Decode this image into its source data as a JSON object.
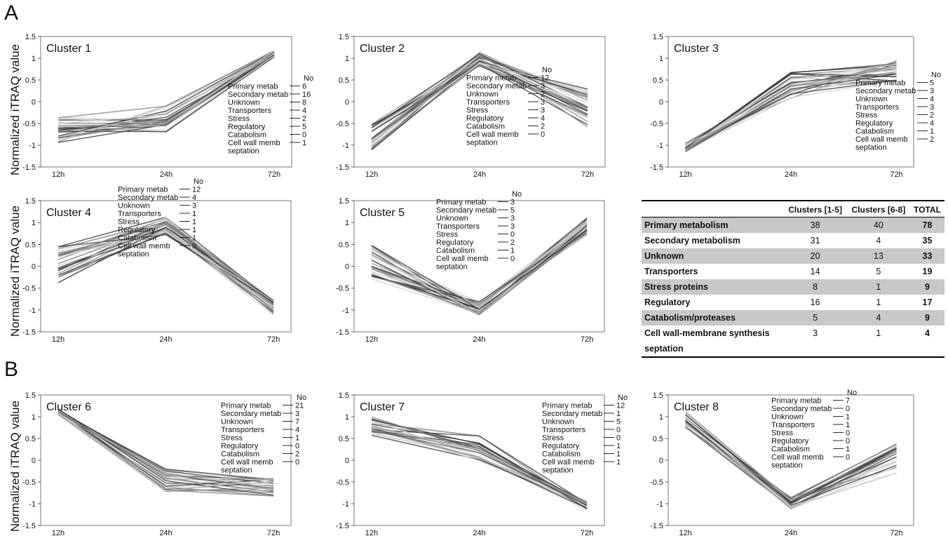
{
  "panels": {
    "a": "A",
    "b": "B"
  },
  "ylabel": "Normalized iTRAQ value",
  "colors": {
    "line_dark": "#3c3c3c",
    "line_mid": "#8a8a8a",
    "line_light": "#cfcfcf",
    "table_shade": "#c8c8c8"
  },
  "chart_data": [
    {
      "type": "line",
      "title": "Cluster 1",
      "categories": [
        "12h",
        "24h",
        "72h"
      ],
      "ylim": [
        -1.5,
        1.5
      ],
      "yticks": [
        "1.5",
        "1",
        "0.5",
        "0",
        "-0.5",
        "-1",
        "-1.5"
      ],
      "series_range": {
        "start": [
          -0.95,
          -0.35
        ],
        "mid": [
          -0.75,
          -0.05
        ],
        "end": [
          1.02,
          1.18
        ]
      },
      "line_count": 30,
      "annotation": {
        "header": "No",
        "rows": [
          {
            "label": "Primary metab",
            "count": "6"
          },
          {
            "label": "Secondary metab",
            "count": "16"
          },
          {
            "label": "Unknown",
            "count": "8"
          },
          {
            "label": "Transporters",
            "count": "4"
          },
          {
            "label": "Stress",
            "count": "2"
          },
          {
            "label": "Regulatory",
            "count": "5"
          },
          {
            "label": "Catabolism",
            "count": "0"
          },
          {
            "label": "Cell wall memb",
            "count": "1"
          }
        ],
        "extra": "septation"
      }
    },
    {
      "type": "line",
      "title": "Cluster 2",
      "categories": [
        "12h",
        "24h",
        "72h"
      ],
      "ylim": [
        -1.5,
        1.5
      ],
      "yticks": [
        "1.5",
        "1",
        "0.5",
        "0",
        "-0.5",
        "-1",
        "-1.5"
      ],
      "series_range": {
        "start": [
          -1.12,
          -0.5
        ],
        "mid": [
          0.82,
          1.15
        ],
        "end": [
          -0.62,
          0.3
        ]
      },
      "line_count": 30,
      "annotation": {
        "header": "No",
        "rows": [
          {
            "label": "Primary metab",
            "count": "12"
          },
          {
            "label": "Secondary metab",
            "count": "3"
          },
          {
            "label": "Unknown",
            "count": "2"
          },
          {
            "label": "Transporters",
            "count": "3"
          },
          {
            "label": "Stress",
            "count": "3"
          },
          {
            "label": "Regulatory",
            "count": "4"
          },
          {
            "label": "Catabolism",
            "count": "2"
          },
          {
            "label": "Cell wall memb",
            "count": "0"
          }
        ],
        "extra": "septation"
      }
    },
    {
      "type": "line",
      "title": "Cluster 3",
      "categories": [
        "12h",
        "24h",
        "72h"
      ],
      "ylim": [
        -1.5,
        1.5
      ],
      "yticks": [
        "1.5",
        "1",
        "0.5",
        "0",
        "-0.5",
        "-1",
        "-1.5"
      ],
      "series_range": {
        "start": [
          -1.15,
          -0.95
        ],
        "mid": [
          0.05,
          0.7
        ],
        "end": [
          0.45,
          1.02
        ]
      },
      "line_count": 28,
      "annotation": {
        "header": "No",
        "rows": [
          {
            "label": "Primary metab",
            "count": "5"
          },
          {
            "label": "Secondary metab",
            "count": "3"
          },
          {
            "label": "Unknown",
            "count": "4"
          },
          {
            "label": "Transporters",
            "count": "3"
          },
          {
            "label": "Stress",
            "count": "2"
          },
          {
            "label": "Regulatory",
            "count": "4"
          },
          {
            "label": "Catabolism",
            "count": "1"
          },
          {
            "label": "Cell wall memb",
            "count": "2"
          }
        ],
        "extra": "septation"
      }
    },
    {
      "type": "line",
      "title": "Cluster 4",
      "categories": [
        "12h",
        "24h",
        "72h"
      ],
      "ylim": [
        -1.5,
        1.5
      ],
      "yticks": [
        "1.5",
        "1",
        "0.5",
        "0",
        "-0.5",
        "-1",
        "-1.5"
      ],
      "series_range": {
        "start": [
          -0.38,
          0.45
        ],
        "mid": [
          0.72,
          1.15
        ],
        "end": [
          -1.12,
          -0.78
        ]
      },
      "line_count": 30,
      "annotation": {
        "header": "No",
        "rows": [
          {
            "label": "Primary metab",
            "count": "12"
          },
          {
            "label": "Secondary metab",
            "count": "4"
          },
          {
            "label": "Unknown",
            "count": "3"
          },
          {
            "label": "Transporters",
            "count": "1"
          },
          {
            "label": "Stress",
            "count": "1"
          },
          {
            "label": "Regulatory",
            "count": "1"
          },
          {
            "label": "Catabolism",
            "count": "1"
          },
          {
            "label": "Cell wall memb",
            "count": "0"
          }
        ],
        "extra": "septation"
      }
    },
    {
      "type": "line",
      "title": "Cluster 5",
      "categories": [
        "12h",
        "24h",
        "72h"
      ],
      "ylim": [
        -1.5,
        1.5
      ],
      "yticks": [
        "1.5",
        "1",
        "0.5",
        "0",
        "-0.5",
        "-1",
        "-1.5"
      ],
      "series_range": {
        "start": [
          -0.32,
          0.48
        ],
        "mid": [
          -1.12,
          -0.8
        ],
        "end": [
          0.72,
          1.12
        ]
      },
      "line_count": 28,
      "annotation": {
        "header": "No",
        "rows": [
          {
            "label": "Primary metab",
            "count": "3"
          },
          {
            "label": "Secondary metab",
            "count": "5"
          },
          {
            "label": "Unknown",
            "count": "3"
          },
          {
            "label": "Transporters",
            "count": "3"
          },
          {
            "label": "Stress",
            "count": "0"
          },
          {
            "label": "Regulatory",
            "count": "2"
          },
          {
            "label": "Catabolism",
            "count": "1"
          },
          {
            "label": "Cell wall memb",
            "count": "0"
          }
        ],
        "extra": "septation"
      }
    },
    {
      "type": "table",
      "columns": [
        "",
        "Clusters [1-5]",
        "Clusters [6-8]",
        "TOTAL"
      ],
      "rows": [
        {
          "category": "Primary metabolism",
          "c1_5": "38",
          "c6_8": "40",
          "total": "78"
        },
        {
          "category": "Secondary metabolism",
          "c1_5": "31",
          "c6_8": "4",
          "total": "35"
        },
        {
          "category": "Unknown",
          "c1_5": "20",
          "c6_8": "13",
          "total": "33"
        },
        {
          "category": "Transporters",
          "c1_5": "14",
          "c6_8": "5",
          "total": "19"
        },
        {
          "category": "Stress proteins",
          "c1_5": "8",
          "c6_8": "1",
          "total": "9"
        },
        {
          "category": "Regulatory",
          "c1_5": "16",
          "c6_8": "1",
          "total": "17"
        },
        {
          "category": "Catabolism/proteases",
          "c1_5": "5",
          "c6_8": "4",
          "total": "9"
        },
        {
          "category": "Cell wall-membrane synthesis",
          "c1_5": "3",
          "c6_8": "1",
          "total": "4"
        }
      ],
      "last_row_extra": "septation"
    },
    {
      "type": "line",
      "title": "Cluster 6",
      "categories": [
        "12h",
        "24h",
        "72h"
      ],
      "ylim": [
        -1.5,
        1.5
      ],
      "yticks": [
        "1.5",
        "1",
        "0.5",
        "0",
        "-0.5",
        "-1",
        "-1.5"
      ],
      "series_range": {
        "start": [
          1.05,
          1.18
        ],
        "mid": [
          -0.72,
          -0.2
        ],
        "end": [
          -0.95,
          -0.4
        ]
      },
      "line_count": 30,
      "annotation": {
        "header": "No",
        "rows": [
          {
            "label": "Primary metab",
            "count": "21"
          },
          {
            "label": "Secondary metab",
            "count": "3"
          },
          {
            "label": "Unknown",
            "count": "7"
          },
          {
            "label": "Transporters",
            "count": "4"
          },
          {
            "label": "Stress",
            "count": "1"
          },
          {
            "label": "Regulatory",
            "count": "0"
          },
          {
            "label": "Catabolism",
            "count": "2"
          },
          {
            "label": "Cell wall memb",
            "count": "0"
          }
        ],
        "extra": "septation"
      }
    },
    {
      "type": "line",
      "title": "Cluster 7",
      "categories": [
        "12h",
        "24h",
        "72h"
      ],
      "ylim": [
        -1.5,
        1.5
      ],
      "yticks": [
        "1.5",
        "1",
        "0.5",
        "0",
        "-0.5",
        "-1",
        "-1.5"
      ],
      "series_range": {
        "start": [
          0.55,
          1.0
        ],
        "mid": [
          -0.05,
          0.65
        ],
        "end": [
          -1.15,
          -0.95
        ]
      },
      "line_count": 26,
      "annotation": {
        "header": "No",
        "rows": [
          {
            "label": "Primary metab",
            "count": "12"
          },
          {
            "label": "Secondary metab",
            "count": "1"
          },
          {
            "label": "Unknown",
            "count": "5"
          },
          {
            "label": "Transporters",
            "count": "0"
          },
          {
            "label": "Stress",
            "count": "0"
          },
          {
            "label": "Regulatory",
            "count": "1"
          },
          {
            "label": "Catabolism",
            "count": "1"
          },
          {
            "label": "Cell wall memb",
            "count": "1"
          }
        ],
        "extra": "septation"
      }
    },
    {
      "type": "line",
      "title": "Cluster 8",
      "categories": [
        "12h",
        "24h",
        "72h"
      ],
      "ylim": [
        -1.5,
        1.5
      ],
      "yticks": [
        "1.5",
        "1",
        "0.5",
        "0",
        "-0.5",
        "-1",
        "-1.5"
      ],
      "series_range": {
        "start": [
          0.75,
          1.15
        ],
        "mid": [
          -1.15,
          -0.85
        ],
        "end": [
          -0.3,
          0.4
        ]
      },
      "line_count": 22,
      "annotation": {
        "header": "No",
        "rows": [
          {
            "label": "Primary metab",
            "count": "7"
          },
          {
            "label": "Secondary metab",
            "count": "0"
          },
          {
            "label": "Unknown",
            "count": "1"
          },
          {
            "label": "Transporters",
            "count": "1"
          },
          {
            "label": "Stress",
            "count": "0"
          },
          {
            "label": "Regulatory",
            "count": "0"
          },
          {
            "label": "Catabolism",
            "count": "1"
          },
          {
            "label": "Cell wall memb",
            "count": "0"
          }
        ],
        "extra": "septation"
      }
    }
  ]
}
